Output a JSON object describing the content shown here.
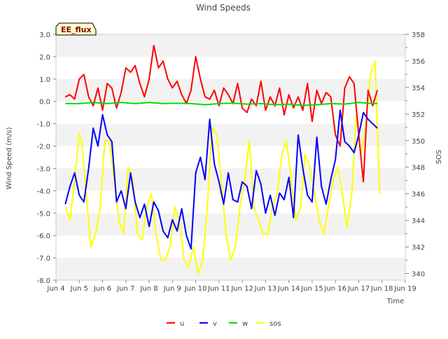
{
  "chart_data": {
    "type": "line",
    "title": "Wind Speeds",
    "site_label": "EE_flux",
    "xlabel": "Time",
    "ylabel": "Wind Speed (m/s)",
    "y2label": "SOS",
    "xlim": [
      4,
      19
    ],
    "ylim": [
      -8,
      3
    ],
    "y2lim": [
      339.5,
      358
    ],
    "x_ticks": [
      {
        "value": 4,
        "label": "Jun 4"
      },
      {
        "value": 5,
        "label": "Jun 5"
      },
      {
        "value": 6,
        "label": "Jun 6"
      },
      {
        "value": 7,
        "label": "Jun 7"
      },
      {
        "value": 8,
        "label": "Jun 8"
      },
      {
        "value": 9,
        "label": "Jun 9"
      },
      {
        "value": 10,
        "label": "Jun 10"
      },
      {
        "value": 11,
        "label": "Jun 11"
      },
      {
        "value": 12,
        "label": "Jun 12"
      },
      {
        "value": 13,
        "label": "Jun 13"
      },
      {
        "value": 14,
        "label": "Jun 14"
      },
      {
        "value": 15,
        "label": "Jun 15"
      },
      {
        "value": 16,
        "label": "Jun 16"
      },
      {
        "value": 17,
        "label": "Jun 17"
      },
      {
        "value": 18,
        "label": "Jun 18"
      },
      {
        "value": 19,
        "label": "Jun 19"
      }
    ],
    "y_ticks": [
      {
        "value": 3,
        "label": "3.0"
      },
      {
        "value": 2,
        "label": "2.0"
      },
      {
        "value": 1,
        "label": "1.0"
      },
      {
        "value": 0,
        "label": "0.0"
      },
      {
        "value": -1,
        "label": "-1.0"
      },
      {
        "value": -2,
        "label": "-2.0"
      },
      {
        "value": -3,
        "label": "-3.0"
      },
      {
        "value": -4,
        "label": "-4.0"
      },
      {
        "value": -5,
        "label": "-5.0"
      },
      {
        "value": -6,
        "label": "-6.0"
      },
      {
        "value": -7,
        "label": "-7.0"
      },
      {
        "value": -8,
        "label": "-8.0"
      }
    ],
    "y2_ticks": [
      {
        "value": 340,
        "label": "340"
      },
      {
        "value": 342,
        "label": "342"
      },
      {
        "value": 344,
        "label": "344"
      },
      {
        "value": 346,
        "label": "346"
      },
      {
        "value": 348,
        "label": "348"
      },
      {
        "value": 350,
        "label": "350"
      },
      {
        "value": 352,
        "label": "352"
      },
      {
        "value": 354,
        "label": "354"
      },
      {
        "value": 356,
        "label": "356"
      },
      {
        "value": 358,
        "label": "358"
      }
    ],
    "band_ranges": [
      [
        2,
        3
      ],
      [
        0,
        1
      ],
      [
        -2,
        -1
      ],
      [
        -4,
        -3
      ],
      [
        -6,
        -5
      ],
      [
        -8,
        -7
      ]
    ],
    "legend_position": "bottom-center",
    "series": [
      {
        "name": "u",
        "color": "#ff0000",
        "axis": "left",
        "x": [
          4.4,
          4.6,
          4.8,
          5.0,
          5.2,
          5.4,
          5.6,
          5.8,
          6.0,
          6.2,
          6.4,
          6.6,
          6.8,
          7.0,
          7.2,
          7.4,
          7.6,
          7.8,
          8.0,
          8.2,
          8.4,
          8.6,
          8.8,
          9.0,
          9.2,
          9.4,
          9.6,
          9.8,
          10.0,
          10.2,
          10.4,
          10.6,
          10.8,
          11.0,
          11.2,
          11.4,
          11.6,
          11.8,
          12.0,
          12.2,
          12.4,
          12.6,
          12.8,
          13.0,
          13.2,
          13.4,
          13.6,
          13.8,
          14.0,
          14.2,
          14.4,
          14.6,
          14.8,
          15.0,
          15.2,
          15.4,
          15.6,
          15.8,
          16.0,
          16.2,
          16.4,
          16.6,
          16.8,
          17.0,
          17.2,
          17.4,
          17.6,
          17.8
        ],
        "values": [
          0.2,
          0.3,
          0.1,
          1.0,
          1.2,
          0.2,
          -0.2,
          0.6,
          -0.4,
          0.8,
          0.6,
          -0.3,
          0.4,
          1.5,
          1.3,
          1.6,
          0.8,
          0.2,
          1.0,
          2.5,
          1.5,
          1.8,
          1.0,
          0.6,
          0.9,
          0.3,
          -0.1,
          0.5,
          2.0,
          1.0,
          0.2,
          0.1,
          0.5,
          -0.2,
          0.6,
          0.3,
          -0.1,
          0.8,
          -0.3,
          -0.5,
          0.1,
          -0.2,
          0.9,
          -0.4,
          0.2,
          -0.2,
          0.6,
          -0.6,
          0.3,
          -0.3,
          0.2,
          -0.4,
          0.8,
          -0.9,
          0.5,
          -0.1,
          0.4,
          0.2,
          -1.5,
          -2.0,
          0.6,
          1.1,
          0.8,
          -1.5,
          -3.6,
          0.5,
          -0.2,
          0.5
        ]
      },
      {
        "name": "v",
        "color": "#0000ff",
        "axis": "left",
        "x": [
          4.4,
          4.6,
          4.8,
          5.0,
          5.2,
          5.4,
          5.6,
          5.8,
          6.0,
          6.2,
          6.4,
          6.6,
          6.8,
          7.0,
          7.2,
          7.4,
          7.6,
          7.8,
          8.0,
          8.2,
          8.4,
          8.6,
          8.8,
          9.0,
          9.2,
          9.4,
          9.6,
          9.8,
          10.0,
          10.2,
          10.4,
          10.6,
          10.8,
          11.0,
          11.2,
          11.4,
          11.6,
          11.8,
          12.0,
          12.2,
          12.4,
          12.6,
          12.8,
          13.0,
          13.2,
          13.4,
          13.6,
          13.8,
          14.0,
          14.2,
          14.4,
          14.6,
          14.8,
          15.0,
          15.2,
          15.4,
          15.6,
          15.8,
          16.0,
          16.2,
          16.4,
          16.6,
          16.8,
          17.0,
          17.2,
          17.4,
          17.6,
          17.8
        ],
        "values": [
          -4.6,
          -3.8,
          -3.2,
          -4.2,
          -4.5,
          -3.0,
          -1.2,
          -2.0,
          -0.6,
          -1.5,
          -1.8,
          -4.5,
          -4.0,
          -4.8,
          -3.2,
          -4.5,
          -5.2,
          -4.6,
          -5.6,
          -4.5,
          -4.9,
          -5.8,
          -6.1,
          -5.3,
          -5.8,
          -4.8,
          -6.0,
          -6.6,
          -3.2,
          -2.5,
          -3.5,
          -0.8,
          -2.8,
          -3.6,
          -4.6,
          -3.2,
          -4.4,
          -4.5,
          -3.6,
          -3.8,
          -4.8,
          -3.1,
          -3.7,
          -5.0,
          -4.2,
          -5.1,
          -4.1,
          -4.4,
          -3.4,
          -5.2,
          -1.5,
          -3.0,
          -4.2,
          -4.5,
          -1.6,
          -3.8,
          -4.6,
          -3.5,
          -2.6,
          -0.4,
          -1.8,
          -2.0,
          -2.3,
          -1.5,
          -0.5,
          -0.8,
          -1.0,
          -1.2
        ]
      },
      {
        "name": "w",
        "color": "#00dd00",
        "axis": "left",
        "x": [
          4.4,
          5.0,
          5.6,
          6.2,
          6.8,
          7.4,
          8.0,
          8.6,
          9.2,
          9.8,
          10.4,
          11.0,
          11.6,
          12.2,
          12.8,
          13.4,
          14.0,
          14.6,
          15.2,
          15.8,
          16.4,
          17.0,
          17.6,
          17.8
        ],
        "values": [
          -0.1,
          -0.1,
          -0.05,
          -0.1,
          -0.05,
          -0.1,
          -0.05,
          -0.1,
          -0.08,
          -0.1,
          -0.15,
          -0.1,
          -0.08,
          -0.12,
          -0.1,
          -0.15,
          -0.12,
          -0.18,
          -0.15,
          -0.1,
          -0.12,
          -0.05,
          -0.1,
          -0.1
        ]
      },
      {
        "name": "sos",
        "color": "#ffff00",
        "axis": "right",
        "x": [
          4.4,
          4.6,
          4.8,
          5.0,
          5.1,
          5.3,
          5.5,
          5.7,
          5.9,
          6.1,
          6.3,
          6.5,
          6.7,
          6.9,
          7.1,
          7.3,
          7.5,
          7.7,
          7.9,
          8.1,
          8.3,
          8.5,
          8.7,
          8.9,
          9.1,
          9.3,
          9.5,
          9.7,
          9.9,
          10.1,
          10.3,
          10.5,
          10.7,
          10.9,
          11.1,
          11.3,
          11.5,
          11.7,
          11.9,
          12.1,
          12.3,
          12.5,
          12.7,
          12.9,
          13.1,
          13.3,
          13.5,
          13.7,
          13.9,
          14.1,
          14.3,
          14.5,
          14.7,
          14.9,
          15.1,
          15.3,
          15.5,
          15.7,
          15.9,
          16.1,
          16.3,
          16.5,
          16.7,
          16.9,
          17.1,
          17.3,
          17.5,
          17.7,
          17.9
        ],
        "values": [
          345,
          344,
          347,
          350.5,
          350,
          346,
          342,
          343,
          345,
          350,
          350,
          347,
          344,
          343,
          348,
          347,
          343,
          342.5,
          345,
          346,
          343,
          341,
          341,
          342,
          345,
          344,
          341,
          340.5,
          342,
          340,
          341,
          345,
          351,
          350.5,
          347,
          343,
          341,
          342,
          345,
          347,
          350,
          345,
          344,
          343,
          343,
          345,
          346,
          349,
          350,
          347,
          344,
          345,
          349,
          348,
          346,
          344,
          343,
          345,
          347,
          348,
          346,
          343.5,
          346,
          352,
          349,
          351,
          355,
          356,
          346
        ]
      }
    ]
  }
}
